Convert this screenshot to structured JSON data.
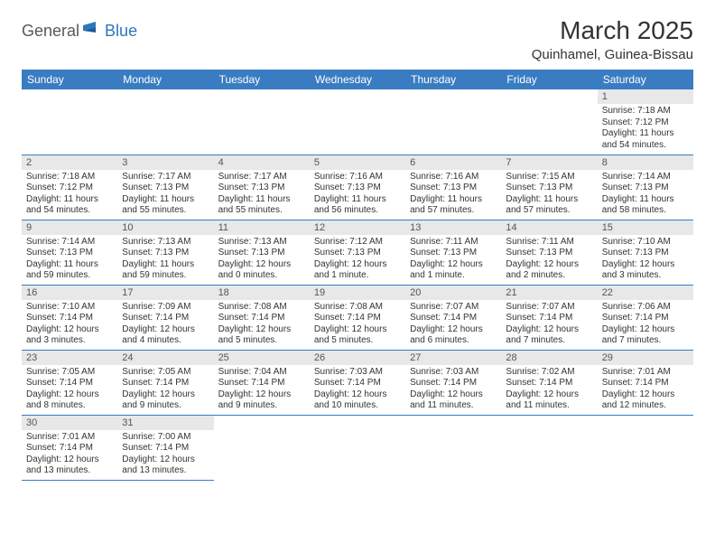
{
  "logo": {
    "general": "General",
    "blue": "Blue"
  },
  "title": "March 2025",
  "location": "Quinhamel, Guinea-Bissau",
  "colors": {
    "header_bg": "#3a7cc2",
    "header_text": "#ffffff",
    "daynum_bg": "#e8e8e8",
    "text": "#333333",
    "logo_gray": "#58585a",
    "logo_blue": "#2f76bb"
  },
  "weekdays": [
    "Sunday",
    "Monday",
    "Tuesday",
    "Wednesday",
    "Thursday",
    "Friday",
    "Saturday"
  ],
  "weeks": [
    [
      {
        "n": "",
        "sr": "",
        "ss": "",
        "dl": ""
      },
      {
        "n": "",
        "sr": "",
        "ss": "",
        "dl": ""
      },
      {
        "n": "",
        "sr": "",
        "ss": "",
        "dl": ""
      },
      {
        "n": "",
        "sr": "",
        "ss": "",
        "dl": ""
      },
      {
        "n": "",
        "sr": "",
        "ss": "",
        "dl": ""
      },
      {
        "n": "",
        "sr": "",
        "ss": "",
        "dl": ""
      },
      {
        "n": "1",
        "sr": "Sunrise: 7:18 AM",
        "ss": "Sunset: 7:12 PM",
        "dl": "Daylight: 11 hours and 54 minutes."
      }
    ],
    [
      {
        "n": "2",
        "sr": "Sunrise: 7:18 AM",
        "ss": "Sunset: 7:12 PM",
        "dl": "Daylight: 11 hours and 54 minutes."
      },
      {
        "n": "3",
        "sr": "Sunrise: 7:17 AM",
        "ss": "Sunset: 7:13 PM",
        "dl": "Daylight: 11 hours and 55 minutes."
      },
      {
        "n": "4",
        "sr": "Sunrise: 7:17 AM",
        "ss": "Sunset: 7:13 PM",
        "dl": "Daylight: 11 hours and 55 minutes."
      },
      {
        "n": "5",
        "sr": "Sunrise: 7:16 AM",
        "ss": "Sunset: 7:13 PM",
        "dl": "Daylight: 11 hours and 56 minutes."
      },
      {
        "n": "6",
        "sr": "Sunrise: 7:16 AM",
        "ss": "Sunset: 7:13 PM",
        "dl": "Daylight: 11 hours and 57 minutes."
      },
      {
        "n": "7",
        "sr": "Sunrise: 7:15 AM",
        "ss": "Sunset: 7:13 PM",
        "dl": "Daylight: 11 hours and 57 minutes."
      },
      {
        "n": "8",
        "sr": "Sunrise: 7:14 AM",
        "ss": "Sunset: 7:13 PM",
        "dl": "Daylight: 11 hours and 58 minutes."
      }
    ],
    [
      {
        "n": "9",
        "sr": "Sunrise: 7:14 AM",
        "ss": "Sunset: 7:13 PM",
        "dl": "Daylight: 11 hours and 59 minutes."
      },
      {
        "n": "10",
        "sr": "Sunrise: 7:13 AM",
        "ss": "Sunset: 7:13 PM",
        "dl": "Daylight: 11 hours and 59 minutes."
      },
      {
        "n": "11",
        "sr": "Sunrise: 7:13 AM",
        "ss": "Sunset: 7:13 PM",
        "dl": "Daylight: 12 hours and 0 minutes."
      },
      {
        "n": "12",
        "sr": "Sunrise: 7:12 AM",
        "ss": "Sunset: 7:13 PM",
        "dl": "Daylight: 12 hours and 1 minute."
      },
      {
        "n": "13",
        "sr": "Sunrise: 7:11 AM",
        "ss": "Sunset: 7:13 PM",
        "dl": "Daylight: 12 hours and 1 minute."
      },
      {
        "n": "14",
        "sr": "Sunrise: 7:11 AM",
        "ss": "Sunset: 7:13 PM",
        "dl": "Daylight: 12 hours and 2 minutes."
      },
      {
        "n": "15",
        "sr": "Sunrise: 7:10 AM",
        "ss": "Sunset: 7:13 PM",
        "dl": "Daylight: 12 hours and 3 minutes."
      }
    ],
    [
      {
        "n": "16",
        "sr": "Sunrise: 7:10 AM",
        "ss": "Sunset: 7:14 PM",
        "dl": "Daylight: 12 hours and 3 minutes."
      },
      {
        "n": "17",
        "sr": "Sunrise: 7:09 AM",
        "ss": "Sunset: 7:14 PM",
        "dl": "Daylight: 12 hours and 4 minutes."
      },
      {
        "n": "18",
        "sr": "Sunrise: 7:08 AM",
        "ss": "Sunset: 7:14 PM",
        "dl": "Daylight: 12 hours and 5 minutes."
      },
      {
        "n": "19",
        "sr": "Sunrise: 7:08 AM",
        "ss": "Sunset: 7:14 PM",
        "dl": "Daylight: 12 hours and 5 minutes."
      },
      {
        "n": "20",
        "sr": "Sunrise: 7:07 AM",
        "ss": "Sunset: 7:14 PM",
        "dl": "Daylight: 12 hours and 6 minutes."
      },
      {
        "n": "21",
        "sr": "Sunrise: 7:07 AM",
        "ss": "Sunset: 7:14 PM",
        "dl": "Daylight: 12 hours and 7 minutes."
      },
      {
        "n": "22",
        "sr": "Sunrise: 7:06 AM",
        "ss": "Sunset: 7:14 PM",
        "dl": "Daylight: 12 hours and 7 minutes."
      }
    ],
    [
      {
        "n": "23",
        "sr": "Sunrise: 7:05 AM",
        "ss": "Sunset: 7:14 PM",
        "dl": "Daylight: 12 hours and 8 minutes."
      },
      {
        "n": "24",
        "sr": "Sunrise: 7:05 AM",
        "ss": "Sunset: 7:14 PM",
        "dl": "Daylight: 12 hours and 9 minutes."
      },
      {
        "n": "25",
        "sr": "Sunrise: 7:04 AM",
        "ss": "Sunset: 7:14 PM",
        "dl": "Daylight: 12 hours and 9 minutes."
      },
      {
        "n": "26",
        "sr": "Sunrise: 7:03 AM",
        "ss": "Sunset: 7:14 PM",
        "dl": "Daylight: 12 hours and 10 minutes."
      },
      {
        "n": "27",
        "sr": "Sunrise: 7:03 AM",
        "ss": "Sunset: 7:14 PM",
        "dl": "Daylight: 12 hours and 11 minutes."
      },
      {
        "n": "28",
        "sr": "Sunrise: 7:02 AM",
        "ss": "Sunset: 7:14 PM",
        "dl": "Daylight: 12 hours and 11 minutes."
      },
      {
        "n": "29",
        "sr": "Sunrise: 7:01 AM",
        "ss": "Sunset: 7:14 PM",
        "dl": "Daylight: 12 hours and 12 minutes."
      }
    ],
    [
      {
        "n": "30",
        "sr": "Sunrise: 7:01 AM",
        "ss": "Sunset: 7:14 PM",
        "dl": "Daylight: 12 hours and 13 minutes."
      },
      {
        "n": "31",
        "sr": "Sunrise: 7:00 AM",
        "ss": "Sunset: 7:14 PM",
        "dl": "Daylight: 12 hours and 13 minutes."
      },
      {
        "n": "",
        "sr": "",
        "ss": "",
        "dl": ""
      },
      {
        "n": "",
        "sr": "",
        "ss": "",
        "dl": ""
      },
      {
        "n": "",
        "sr": "",
        "ss": "",
        "dl": ""
      },
      {
        "n": "",
        "sr": "",
        "ss": "",
        "dl": ""
      },
      {
        "n": "",
        "sr": "",
        "ss": "",
        "dl": ""
      }
    ]
  ]
}
